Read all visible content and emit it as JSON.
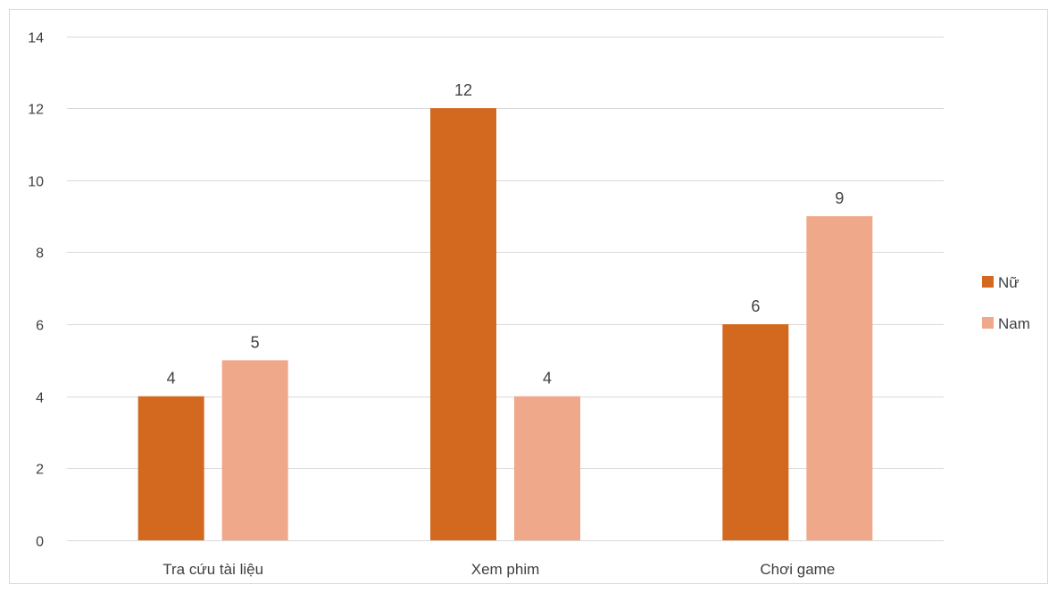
{
  "chart_data": {
    "type": "bar",
    "title": "",
    "xlabel": "",
    "ylabel": "",
    "categories": [
      "Tra cứu tài liệu",
      "Xem phim",
      "Chơi game"
    ],
    "series": [
      {
        "name": "Nữ",
        "values": [
          4,
          12,
          6
        ],
        "color": "#D2691E"
      },
      {
        "name": "Nam",
        "values": [
          5,
          4,
          9
        ],
        "color": "#F0A88A"
      }
    ],
    "ylim": [
      0,
      14
    ],
    "yticks": [
      0,
      2,
      4,
      6,
      8,
      10,
      12,
      14
    ],
    "grid": true,
    "legend_position": "right",
    "data_labels": true
  }
}
